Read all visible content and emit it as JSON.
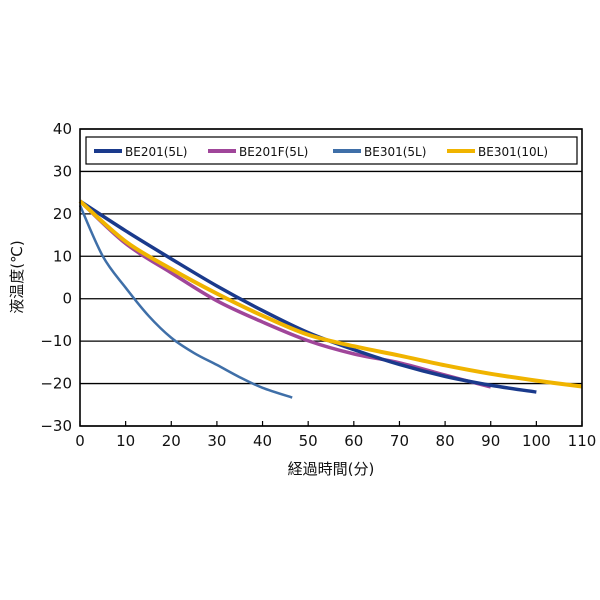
{
  "chart_data": {
    "type": "line",
    "title": "",
    "xlabel": "経過時間(分)",
    "ylabel": "液温度(℃)",
    "xlim": [
      0,
      110
    ],
    "ylim": [
      -30,
      40
    ],
    "xticks": [
      0,
      10,
      20,
      30,
      40,
      50,
      60,
      70,
      80,
      90,
      100,
      110
    ],
    "yticks": [
      -30,
      -20,
      -10,
      0,
      10,
      20,
      30,
      40
    ],
    "ytick_labels": [
      "−30",
      "−20",
      "−10",
      "0",
      "10",
      "20",
      "30",
      "40"
    ],
    "grid": "horizontal",
    "legend_placement": "top",
    "series": [
      {
        "name": "BE201(5L)",
        "color": "#1a3a8c",
        "x": [
          0,
          10,
          20,
          30,
          40,
          50,
          60,
          70,
          80,
          90,
          100
        ],
        "y": [
          23,
          16,
          9.4,
          3,
          -2.8,
          -8,
          -12,
          -15.5,
          -18.3,
          -20.4,
          -22
        ]
      },
      {
        "name": "BE201F(5L)",
        "color": "#a0469a",
        "x": [
          0,
          10,
          20,
          30,
          40,
          50,
          60,
          70,
          80,
          90
        ],
        "y": [
          23,
          13,
          6.1,
          -0.5,
          -5.5,
          -9.9,
          -13,
          -15.1,
          -18,
          -20.8
        ]
      },
      {
        "name": "BE301(5L)",
        "color": "#3f6fa8",
        "x": [
          0,
          5,
          10,
          15,
          20,
          25,
          30,
          35,
          40,
          46.5
        ],
        "y": [
          22,
          10,
          2.6,
          -4,
          -9.2,
          -12.8,
          -15.6,
          -18.5,
          -21,
          -23.3
        ]
      },
      {
        "name": "BE301(10L)",
        "color": "#f0b400",
        "x": [
          0,
          10,
          20,
          30,
          40,
          50,
          60,
          70,
          80,
          90,
          100,
          110
        ],
        "y": [
          23,
          13.5,
          7,
          1.2,
          -4,
          -8.5,
          -11.2,
          -13.4,
          -15.7,
          -17.7,
          -19.3,
          -20.7
        ]
      }
    ]
  }
}
